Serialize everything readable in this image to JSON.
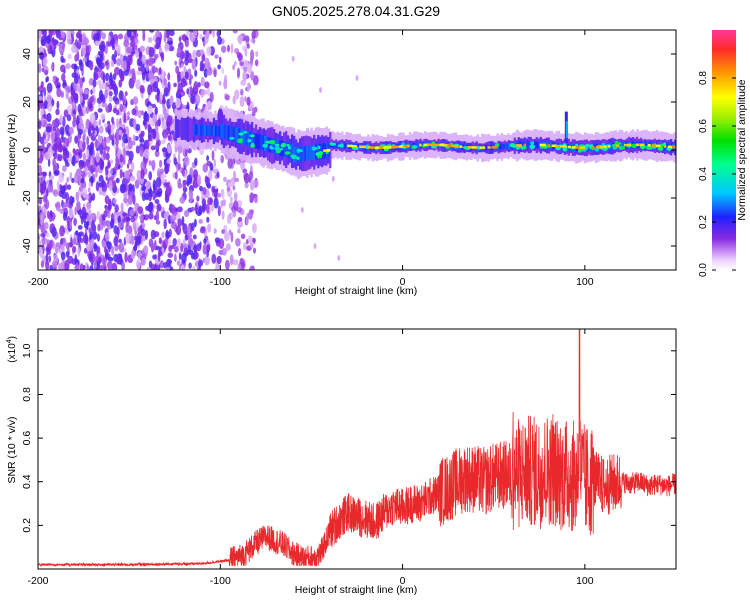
{
  "figure": {
    "title": "GN05.2025.278.04.31.G29"
  },
  "chart_data": [
    {
      "type": "heatmap",
      "name": "spectrogram",
      "xlabel": "Height of straight line (km)",
      "ylabel": "Frequency (Hz)",
      "xlim": [
        -200,
        150
      ],
      "ylim": [
        -50,
        50
      ],
      "x_ticks": [
        -200,
        -100,
        0,
        100
      ],
      "x_tick_labels": [
        "-200",
        "-100",
        "0",
        "100"
      ],
      "y_ticks": [
        -40,
        -20,
        0,
        20,
        40
      ],
      "y_tick_labels": [
        "-40",
        "-20",
        "0",
        "20",
        "40"
      ],
      "colorbar": {
        "label": "Normalized spectral amplitude",
        "range": [
          0,
          1
        ],
        "ticks": [
          0.0,
          0.2,
          0.4,
          0.6,
          0.8
        ],
        "tick_labels": [
          "0.0",
          "0.2",
          "0.4",
          "0.6",
          "0.8"
        ]
      },
      "features": {
        "noise_region_x": [
          -200,
          -85
        ],
        "signal_onset_x": -125,
        "carrier_frequency_hz": 1.5,
        "carrier_peak_amplitude": 0.85
      }
    },
    {
      "type": "line",
      "name": "snr",
      "xlabel": "Height of straight line (km)",
      "ylabel": "SNR (10 * v/v)",
      "scale_label": "(x10^4)",
      "scale_label_base": "(x10",
      "scale_label_exp": "4",
      "scale_label_close": ")",
      "xlim": [
        -200,
        150
      ],
      "ylim": [
        0,
        1.1
      ],
      "x_ticks": [
        -200,
        -100,
        0,
        100
      ],
      "x_tick_labels": [
        "-200",
        "-100",
        "0",
        "100"
      ],
      "y_ticks": [
        0.2,
        0.4,
        0.6,
        0.8,
        1.0
      ],
      "y_tick_labels": [
        "0.2",
        "0.4",
        "0.6",
        "0.8",
        "1.0"
      ],
      "color": "#e8282b",
      "series": [
        {
          "name": "SNR",
          "x": [
            -200,
            -150,
            -110,
            -95,
            -88,
            -80,
            -75,
            -70,
            -65,
            -60,
            -55,
            -50,
            -45,
            -40,
            -35,
            -30,
            -25,
            -20,
            -15,
            -10,
            -5,
            0,
            5,
            10,
            15,
            20,
            25,
            30,
            35,
            40,
            45,
            50,
            55,
            60,
            65,
            70,
            75,
            80,
            85,
            90,
            95,
            97,
            100,
            105,
            110,
            115,
            120,
            125,
            130,
            135,
            140,
            145,
            150
          ],
          "y": [
            0.02,
            0.02,
            0.025,
            0.04,
            0.06,
            0.12,
            0.15,
            0.13,
            0.11,
            0.07,
            0.05,
            0.05,
            0.07,
            0.17,
            0.22,
            0.26,
            0.24,
            0.23,
            0.21,
            0.26,
            0.29,
            0.28,
            0.3,
            0.3,
            0.33,
            0.35,
            0.37,
            0.4,
            0.42,
            0.41,
            0.4,
            0.42,
            0.43,
            0.43,
            0.44,
            0.45,
            0.44,
            0.46,
            0.44,
            0.43,
            0.42,
            0.48,
            0.4,
            0.41,
            0.38,
            0.39,
            0.4,
            0.39,
            0.4,
            0.38,
            0.39,
            0.38,
            0.39
          ]
        }
      ]
    }
  ]
}
